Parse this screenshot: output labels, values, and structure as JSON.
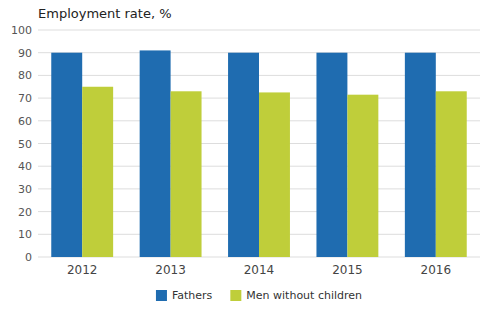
{
  "chart_data": {
    "type": "bar",
    "title": "Employment rate, %",
    "categories": [
      "2012",
      "2013",
      "2014",
      "2015",
      "2016"
    ],
    "series": [
      {
        "name": "Fathers",
        "color": "#1F6CB0",
        "values": [
          90.0,
          91.0,
          90.0,
          90.0,
          90.0
        ]
      },
      {
        "name": "Men without children",
        "color": "#BFCE3A",
        "values": [
          75.0,
          73.0,
          72.5,
          71.5,
          73.0
        ]
      }
    ],
    "ylim": [
      0,
      100
    ],
    "yticks": [
      0,
      10,
      20,
      30,
      40,
      50,
      60,
      70,
      80,
      90,
      100
    ],
    "grid": true,
    "legend": "bottom"
  }
}
